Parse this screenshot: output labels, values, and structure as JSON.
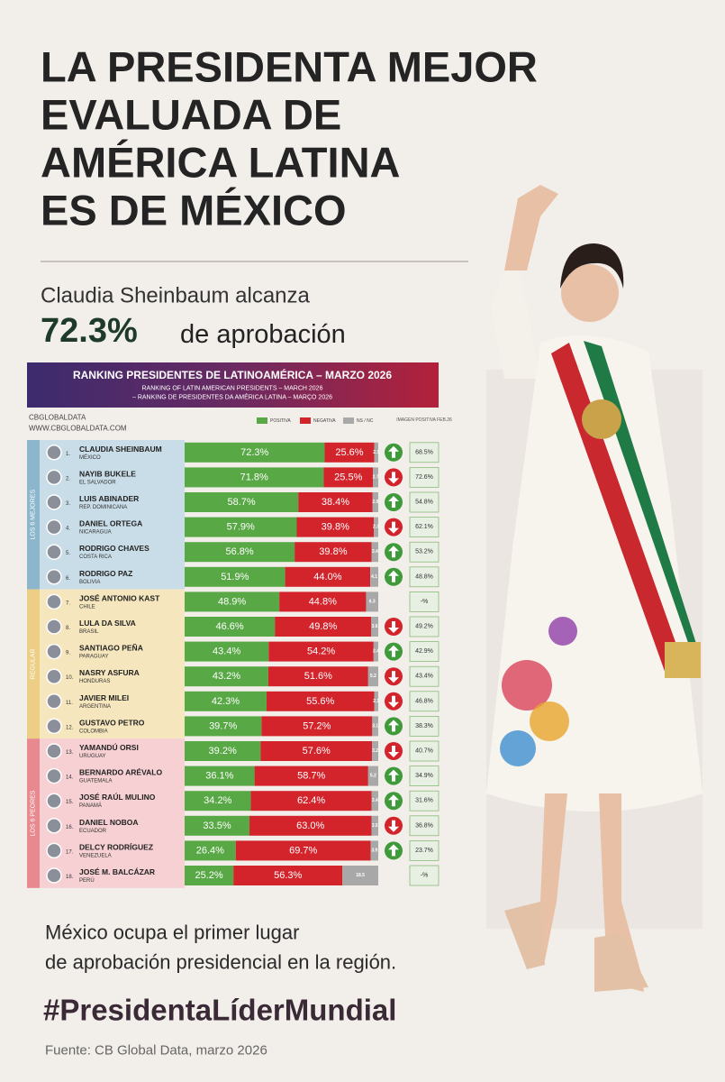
{
  "header": {
    "title_lines": [
      "LA PRESIDENTA MEJOR",
      "EVALUADA DE",
      "AMÉRICA LATINA",
      "ES DE MÉXICO"
    ],
    "subtitle": "Claudia Sheinbaum alcanza",
    "highlight": "72.3%",
    "highlight_rest": "de aprobación"
  },
  "chart_data": {
    "type": "ranking-bar",
    "title": "RANKING PRESIDENTES DE LATINOAMÉRICA – MARZO 2026",
    "subtitles": [
      "RANKING OF LATIN AMERICAN PRESIDENTS – MARCH 2026",
      "– RANKING DE PRESIDENTES DA AMÉRICA LATINA – MARÇO 2026"
    ],
    "brand": "CBGLOBALDATA",
    "website": "WWW.CBGLOBALDATA.COM",
    "prior_header": "IMAGEN POSITIVA FEB.26",
    "ranks": [
      "1.",
      "2.",
      "3.",
      "4.",
      "5.",
      "6.",
      "7.",
      "8.",
      "9.",
      "10.",
      "11.",
      "12.",
      "13.",
      "14.",
      "15.",
      "16.",
      "17.",
      "18."
    ],
    "categories": [
      "CLAUDIA SHEINBAUM",
      "NAYIB BUKELE",
      "LUIS ABINADER",
      "DANIEL ORTEGA",
      "RODRIGO CHAVES",
      "RODRIGO PAZ",
      "JOSÉ ANTONIO KAST",
      "LULA DA SILVA",
      "SANTIAGO PEÑA",
      "NASRY ASFURA",
      "JAVIER MILEI",
      "GUSTAVO PETRO",
      "YAMANDÚ ORSI",
      "BERNARDO ARÉVALO",
      "JOSÉ RAÚL MULINO",
      "DANIEL NOBOA",
      "DELCY RODRÍGUEZ",
      "JOSÉ M. BALCÁZAR"
    ],
    "countries": [
      "MÉXICO",
      "EL SALVADOR",
      "REP. DOMINICANA",
      "NICARAGUA",
      "COSTA RICA",
      "BOLIVIA",
      "CHILE",
      "BRASIL",
      "PARAGUAY",
      "HONDURAS",
      "ARGENTINA",
      "COLOMBIA",
      "URUGUAY",
      "GUATEMALA",
      "PANAMÁ",
      "ECUADOR",
      "VENEZUELA",
      "PERÚ"
    ],
    "series": [
      {
        "name": "POSITIVA",
        "color": "#58a845",
        "values": [
          72.3,
          71.8,
          58.7,
          57.9,
          56.8,
          51.9,
          48.9,
          46.6,
          43.4,
          43.2,
          42.3,
          39.7,
          39.2,
          36.1,
          34.2,
          33.5,
          26.4,
          25.2
        ],
        "value_labels": [
          "72.3%",
          "71.8%",
          "58.7%",
          "57.9%",
          "56.8%",
          "51.9%",
          "48.9%",
          "46.6%",
          "43.4%",
          "43.2%",
          "42.3%",
          "39.7%",
          "39.2%",
          "36.1%",
          "34.2%",
          "33.5%",
          "26.4%",
          "25.2%"
        ]
      },
      {
        "name": "NEGATIVA",
        "color": "#d3242b",
        "values": [
          25.6,
          25.5,
          38.4,
          39.8,
          39.8,
          44.0,
          44.8,
          49.8,
          54.2,
          51.6,
          55.6,
          57.2,
          57.6,
          58.7,
          62.4,
          63.0,
          69.7,
          56.3
        ],
        "value_labels": [
          "25.6%",
          "25.5%",
          "38.4%",
          "39.8%",
          "39.8%",
          "44.0%",
          "44.8%",
          "49.8%",
          "54.2%",
          "51.6%",
          "55.6%",
          "57.2%",
          "57.6%",
          "58.7%",
          "62.4%",
          "63.0%",
          "69.7%",
          "56.3%"
        ]
      },
      {
        "name": "NS / NC",
        "color": "#a8a8a8",
        "values": [
          2.1,
          2.7,
          2.9,
          2.3,
          3.4,
          4.1,
          6.3,
          3.6,
          2.4,
          5.2,
          2.1,
          3.1,
          3.2,
          5.2,
          3.4,
          3.5,
          3.9,
          18.5
        ]
      }
    ],
    "trend": [
      "up",
      "down",
      "up",
      "down",
      "up",
      "up",
      null,
      "down",
      "up",
      "down",
      "down",
      "up",
      "down",
      "up",
      "up",
      "down",
      "up",
      null
    ],
    "prior": [
      "68.5%",
      "72.6%",
      "54.8%",
      "62.1%",
      "53.2%",
      "48.8%",
      "-%",
      "49.2%",
      "42.9%",
      "43.4%",
      "46.8%",
      "38.3%",
      "40.7%",
      "34.9%",
      "31.6%",
      "36.8%",
      "23.7%",
      "-%"
    ],
    "groups": [
      {
        "label": "LOS 6 MEJORES",
        "rows": 6,
        "color": "#4f8fb0",
        "background": "#c9dde8"
      },
      {
        "label": "REGULAR",
        "rows": 6,
        "color": "#e2b54b",
        "background": "#f6e6bd"
      },
      {
        "label": "LOS 6 PEORES",
        "rows": 6,
        "color": "#d8414a",
        "background": "#f6d0d2"
      }
    ]
  },
  "footer": {
    "lines": [
      "México ocupa el primer lugar",
      "de aprobación presidencial en la región."
    ],
    "hashtag": "#PresidentaLíderMundial",
    "source": "Fuente: CB Global Data, marzo 2026"
  }
}
